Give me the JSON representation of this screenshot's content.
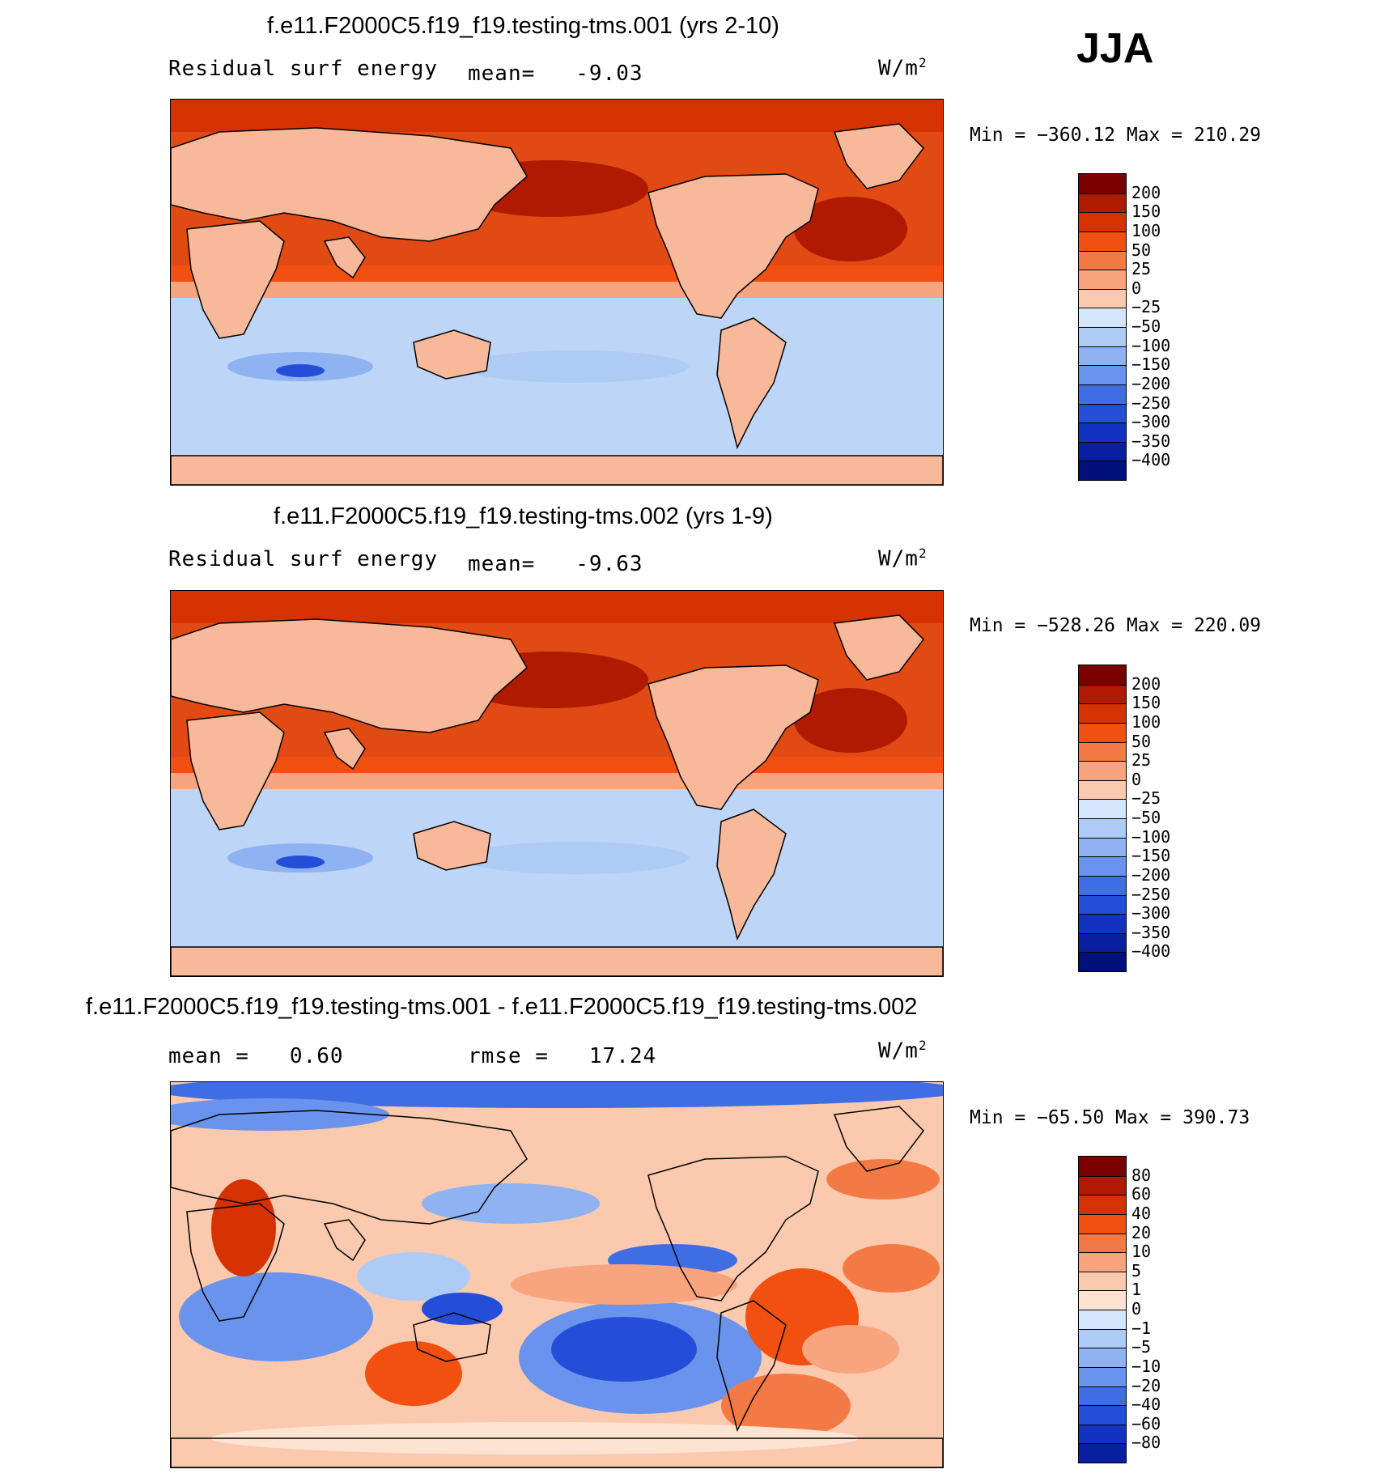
{
  "season": "JJA",
  "colors": {
    "warm": [
      "#7a0000",
      "#b01a00",
      "#d63100",
      "#f25010",
      "#f47a45",
      "#f7a47f",
      "#fbc9ad",
      "#fde4d2"
    ],
    "cool": [
      "#d3e6fb",
      "#aecbf5",
      "#8eb2f2",
      "#6a93ee",
      "#3f6ee4",
      "#244ed8",
      "#1233c2",
      "#0a1fa0",
      "#00107a"
    ],
    "land_warm": "#f8b89a",
    "ocean_pos": "#e24a13",
    "ocean_neg": "#bdd5f6"
  },
  "chart_data": [
    {
      "type": "heatmap",
      "title": "f.e11.F2000C5.f19_f19.testing-tms.001 (yrs 2-10)",
      "left_label": "Residual surf energy",
      "mean_label": "mean=",
      "mean_value": "-9.03",
      "units_base": "W/m",
      "units_exp": "2",
      "min_label": "Min = −360.12 Max = 210.29",
      "min": -360.12,
      "max": 210.29,
      "colorbar_levels": [
        "200",
        "150",
        "100",
        "50",
        "25",
        "0",
        "−25",
        "−50",
        "−100",
        "−150",
        "−200",
        "−250",
        "−300",
        "−350",
        "−400"
      ]
    },
    {
      "type": "heatmap",
      "title": "f.e11.F2000C5.f19_f19.testing-tms.002 (yrs 1-9)",
      "left_label": "Residual surf energy",
      "mean_label": "mean=",
      "mean_value": "-9.63",
      "units_base": "W/m",
      "units_exp": "2",
      "min_label": "Min = −528.26 Max = 220.09",
      "min": -528.26,
      "max": 220.09,
      "colorbar_levels": [
        "200",
        "150",
        "100",
        "50",
        "25",
        "0",
        "−25",
        "−50",
        "−100",
        "−150",
        "−200",
        "−250",
        "−300",
        "−350",
        "−400"
      ]
    },
    {
      "type": "heatmap",
      "title": "f.e11.F2000C5.f19_f19.testing-tms.001 - f.e11.F2000C5.f19_f19.testing-tms.002",
      "left_label": "mean =",
      "mean_value": "0.60",
      "rmse_label": "rmse =",
      "rmse_value": "17.24",
      "units_base": "W/m",
      "units_exp": "2",
      "min_label": "Min = −65.50 Max = 390.73",
      "min": -65.5,
      "max": 390.73,
      "colorbar_levels": [
        "80",
        "60",
        "40",
        "20",
        "10",
        "5",
        "1",
        "0",
        "−1",
        "−5",
        "−10",
        "−20",
        "−40",
        "−60",
        "−80"
      ]
    }
  ]
}
